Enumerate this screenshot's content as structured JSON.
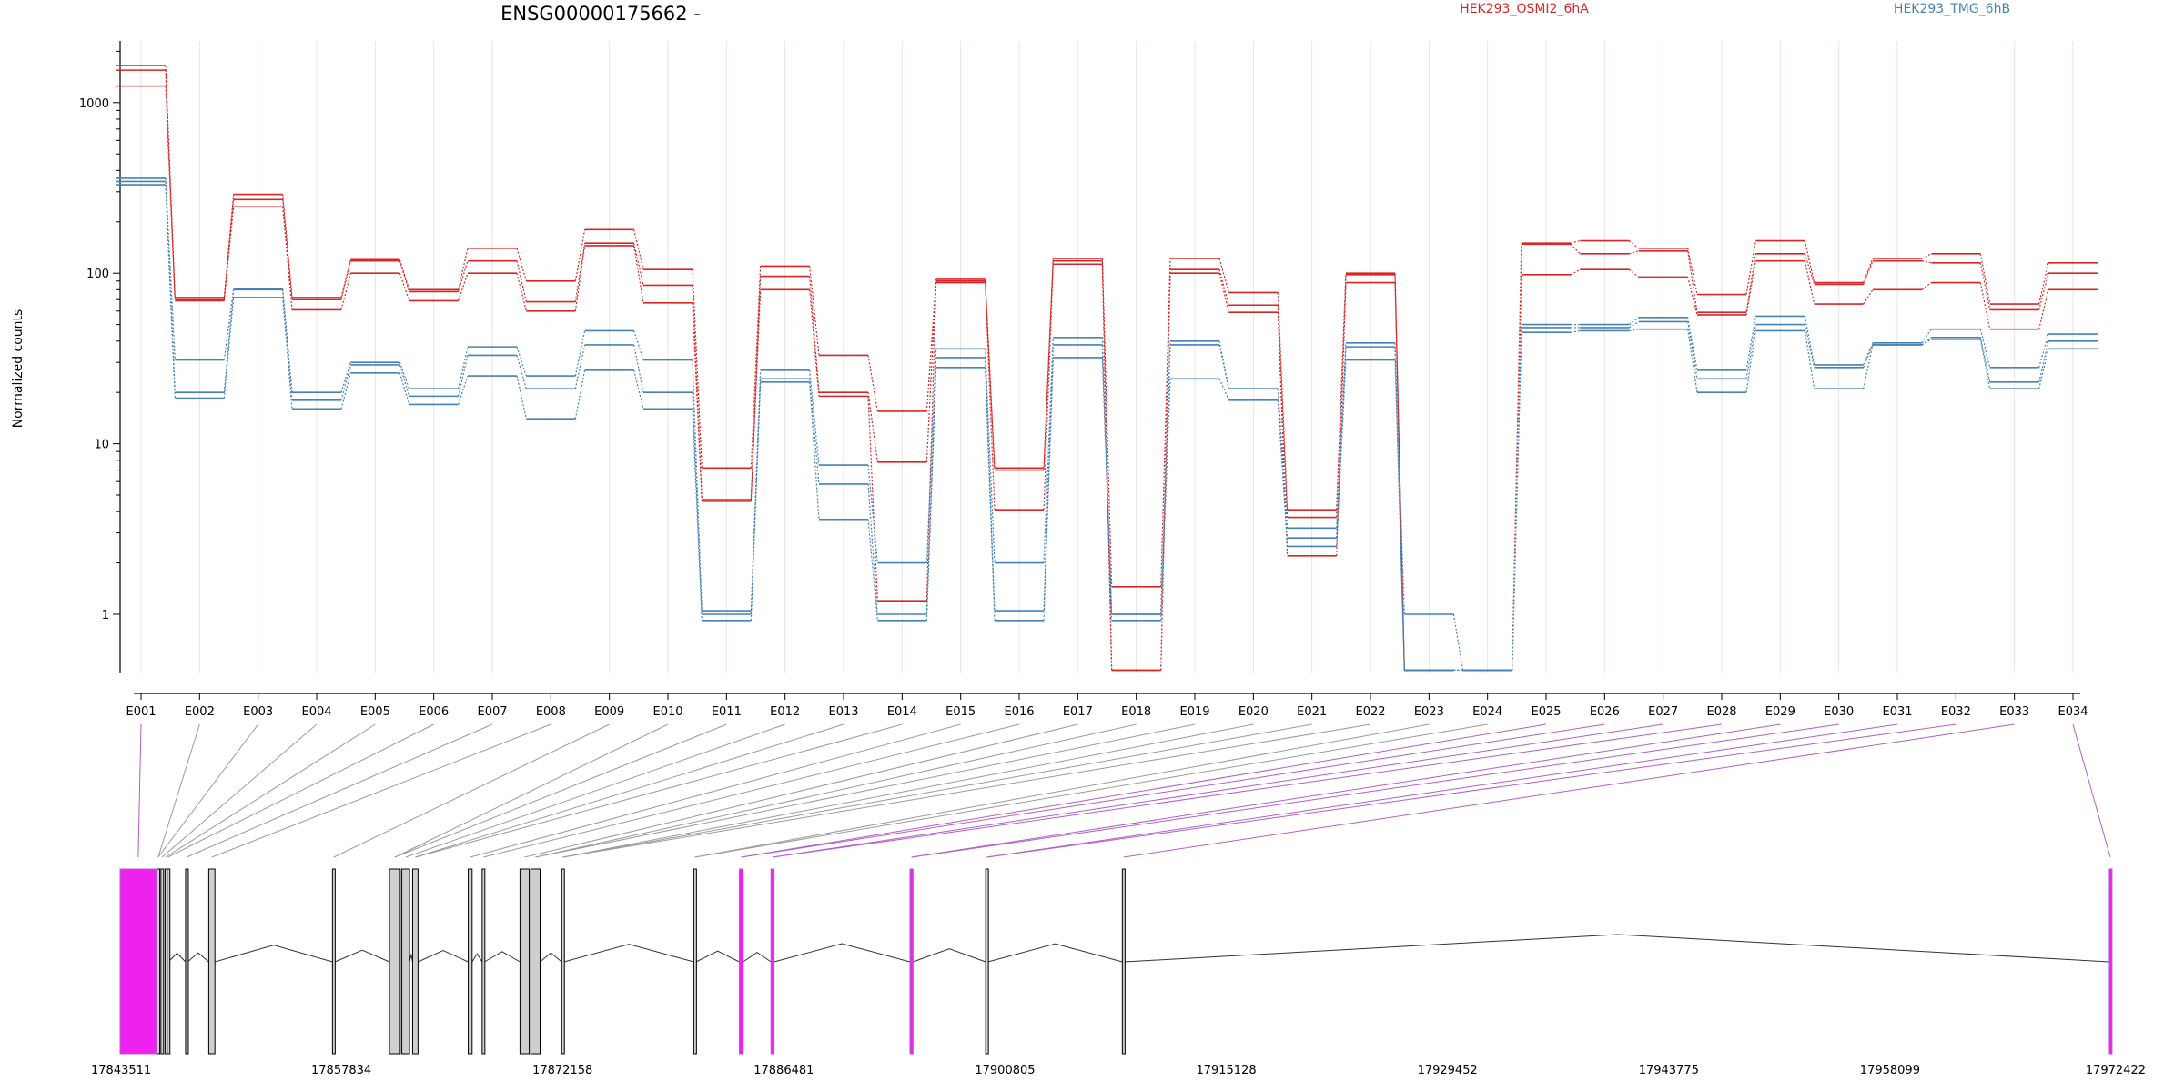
{
  "colors": {
    "osmi": "#d62728",
    "tmg": "#4682b4",
    "highlight": "#ee22ee",
    "highlight_line": "#b15fc8",
    "connector": "#9a9a9a",
    "grid": "#f2dede",
    "exon_fill": "#cfcfcf",
    "exon_edge": "#000000"
  },
  "chart_data": {
    "type": "line",
    "title": "ENSG00000175662 -",
    "ylabel": "Normalized counts",
    "xlabel": "",
    "y_scale": "log",
    "ylim": [
      0.45,
      2300
    ],
    "y_ticks": [
      1,
      10,
      100,
      1000
    ],
    "y_tick_labels": [
      "1",
      "10",
      "100",
      "1000"
    ],
    "legend_position": "top",
    "legend": [
      "HEK293_OSMI2_6hA",
      "HEK293_TMG_6hB"
    ],
    "grid": true,
    "categories": [
      "E001",
      "E002",
      "E003",
      "E004",
      "E005",
      "E006",
      "E007",
      "E008",
      "E009",
      "E010",
      "E011",
      "E012",
      "E013",
      "E014",
      "E015",
      "E016",
      "E017",
      "E018",
      "E019",
      "E020",
      "E021",
      "E022",
      "E023",
      "E024",
      "E025",
      "E026",
      "E027",
      "E028",
      "E029",
      "E030",
      "E031",
      "E032",
      "E033",
      "E034"
    ],
    "series": [
      {
        "group": 0,
        "values": [
          1650,
          72,
          290,
          72,
          120,
          80,
          140,
          90,
          180,
          105,
          7.2,
          110,
          33,
          15.5,
          92,
          7.2,
          122,
          1.45,
          122,
          77,
          4.1,
          100,
          0.47,
          0.47,
          150,
          155,
          140,
          75,
          155,
          88,
          122,
          130,
          66,
          115
        ]
      },
      {
        "group": 0,
        "values": [
          1550,
          70,
          270,
          70,
          118,
          78,
          118,
          68,
          150,
          85,
          4.7,
          96,
          20,
          7.8,
          90,
          7,
          118,
          0.47,
          105,
          65,
          3.7,
          98,
          0.47,
          0.47,
          148,
          130,
          135,
          59,
          130,
          86,
          118,
          115,
          61,
          100
        ]
      },
      {
        "group": 0,
        "values": [
          1250,
          69,
          245,
          61,
          100,
          69,
          100,
          60,
          145,
          67,
          4.6,
          80,
          19,
          1.2,
          88,
          4.1,
          113,
          0.47,
          100,
          59,
          2.2,
          88,
          0.47,
          0.47,
          98,
          105,
          95,
          57,
          118,
          66,
          80,
          88,
          47,
          80
        ]
      },
      {
        "group": 1,
        "values": [
          360,
          31,
          81,
          20,
          30,
          21,
          37,
          25,
          46,
          31,
          1.05,
          27,
          7.5,
          2,
          36,
          2,
          42,
          1,
          40,
          21,
          3.2,
          39,
          1,
          0.47,
          50,
          50,
          55,
          27,
          56,
          29,
          39,
          47,
          28,
          44
        ]
      },
      {
        "group": 1,
        "values": [
          345,
          20,
          80,
          18,
          29,
          19,
          33,
          21,
          38,
          20,
          1,
          24,
          5.8,
          1,
          32,
          1.05,
          38,
          1,
          38,
          21,
          2.8,
          37,
          0.47,
          0.47,
          48,
          48,
          52,
          24,
          50,
          28,
          38,
          42,
          23,
          40
        ]
      },
      {
        "group": 1,
        "values": [
          330,
          18.5,
          72,
          16,
          26,
          17,
          25,
          14,
          27,
          16,
          0.92,
          23,
          3.6,
          0.92,
          28,
          0.92,
          32,
          0.92,
          24,
          18,
          2.5,
          31,
          0.47,
          0.47,
          45,
          46,
          47,
          20,
          46,
          21,
          38,
          41,
          21,
          36
        ]
      }
    ],
    "highlight_exons": [
      "E001",
      "E025",
      "E026",
      "E027",
      "E028",
      "E029",
      "E030",
      "E031",
      "E032",
      "E033",
      "E034"
    ]
  },
  "gene_model": {
    "coord_labels": [
      "17843511",
      "17857834",
      "17872158",
      "17886481",
      "17900805",
      "17915128",
      "17929452",
      "17943775",
      "17958099",
      "17972422"
    ],
    "coord_range": [
      17843511,
      17972422
    ]
  }
}
